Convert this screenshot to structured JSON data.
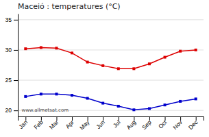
{
  "chart_data": {
    "type": "line",
    "title": "Maceió : temperatures (°C)",
    "categories": [
      "Jan",
      "Feb",
      "Mar",
      "Apr",
      "May",
      "Jun",
      "Jul",
      "Aug",
      "Sep",
      "Oct",
      "Nov",
      "Dec"
    ],
    "series": [
      {
        "color": "#dd0000",
        "marker": "square",
        "values": [
          30.2,
          30.4,
          30.3,
          29.5,
          28.0,
          27.4,
          26.9,
          26.9,
          27.7,
          28.8,
          29.8,
          30.0
        ]
      },
      {
        "color": "#0000cc",
        "marker": "square",
        "values": [
          22.3,
          22.7,
          22.7,
          22.5,
          22.0,
          21.2,
          20.7,
          20.1,
          20.3,
          20.9,
          21.5,
          21.9
        ]
      }
    ],
    "ylim": [
      19,
      36
    ],
    "yticks": [
      20,
      25,
      30,
      35
    ],
    "grid": true,
    "annotations": [
      "www.allmetsat.com"
    ]
  }
}
